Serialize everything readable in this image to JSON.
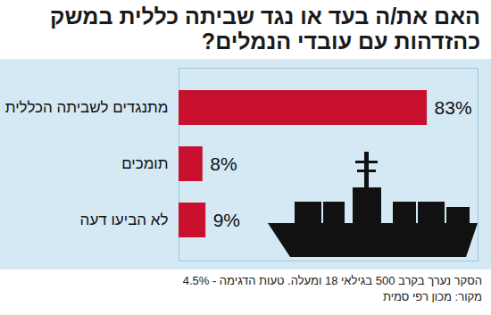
{
  "chart_data": {
    "type": "bar",
    "title": "האם את/ה בעד או נגד שביתה כללית במשק כהזדהות עם עובדי הנמלים?",
    "categories": [
      "מתנגדים לשביתה הכללית",
      "תומכים",
      "לא הביעו דעה"
    ],
    "values": [
      83,
      8,
      9
    ],
    "value_labels": [
      "83%",
      "8%",
      "9%"
    ],
    "color": "#c8102e",
    "orientation": "horizontal",
    "data_labels": true,
    "tick_labels": "y",
    "xlim": [
      0,
      100
    ],
    "annotations": [
      "הסקר נערך בקרב 500 בגילאי 18 ומעלה. טעות הדגימה - 4.5%",
      "מקור: מכון רפי סמית"
    ]
  }
}
